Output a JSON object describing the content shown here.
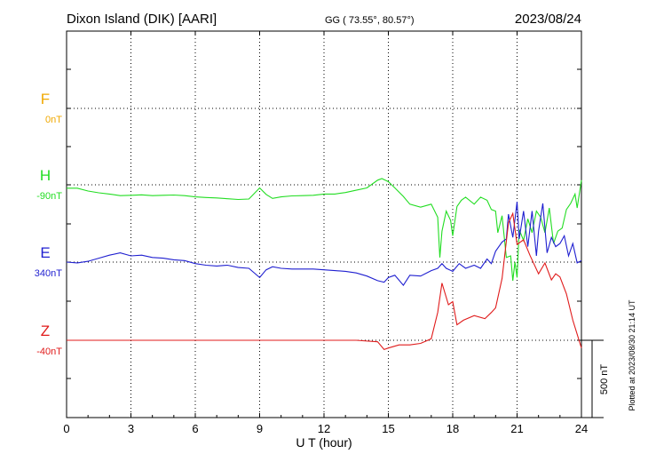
{
  "header": {
    "station": "Dixon Island (DIK)  [AARI]",
    "coords": "GG ( 73.55°,  80.57°)",
    "date": "2023/08/24"
  },
  "footer": {
    "plotted": "Plotted at 2023/08/30 21:14 UT"
  },
  "chart_data": {
    "type": "line",
    "xlabel": "U T (hour)",
    "xlim": [
      0,
      24
    ],
    "xticks": [
      0,
      3,
      6,
      9,
      12,
      15,
      18,
      21,
      24
    ],
    "scale_bar": {
      "value": 500,
      "label": "500 nT"
    },
    "series": [
      {
        "name": "F",
        "baseline": "0nT",
        "color": "#f0a800",
        "points": []
      },
      {
        "name": "H",
        "baseline": "-90nT",
        "color": "#22dd22",
        "points": [
          [
            0,
            -22
          ],
          [
            0.5,
            -22
          ],
          [
            1,
            -40
          ],
          [
            1.5,
            -52
          ],
          [
            2,
            -60
          ],
          [
            2.5,
            -70
          ],
          [
            3,
            -68
          ],
          [
            3.5,
            -65
          ],
          [
            4,
            -70
          ],
          [
            4.5,
            -68
          ],
          [
            5,
            -66
          ],
          [
            5.5,
            -70
          ],
          [
            6,
            -78
          ],
          [
            6.5,
            -82
          ],
          [
            7,
            -85
          ],
          [
            7.5,
            -90
          ],
          [
            8,
            -95
          ],
          [
            8.5,
            -92
          ],
          [
            9,
            -20
          ],
          [
            9.3,
            -62
          ],
          [
            9.6,
            -88
          ],
          [
            10,
            -78
          ],
          [
            10.5,
            -72
          ],
          [
            11,
            -70
          ],
          [
            11.5,
            -68
          ],
          [
            12,
            -60
          ],
          [
            12.5,
            -60
          ],
          [
            13,
            -50
          ],
          [
            13.5,
            -35
          ],
          [
            14,
            -20
          ],
          [
            14.5,
            30
          ],
          [
            14.7,
            40
          ],
          [
            15,
            20
          ],
          [
            15.3,
            -20
          ],
          [
            15.7,
            -75
          ],
          [
            16,
            -125
          ],
          [
            16.5,
            -145
          ],
          [
            17,
            -125
          ],
          [
            17.3,
            -210
          ],
          [
            17.4,
            -470
          ],
          [
            17.5,
            -300
          ],
          [
            17.7,
            -170
          ],
          [
            17.9,
            -230
          ],
          [
            18,
            -330
          ],
          [
            18.2,
            -140
          ],
          [
            18.4,
            -100
          ],
          [
            18.6,
            -80
          ],
          [
            19,
            -125
          ],
          [
            19.3,
            -80
          ],
          [
            19.6,
            -100
          ],
          [
            19.8,
            -160
          ],
          [
            20,
            -170
          ],
          [
            20.1,
            -310
          ],
          [
            20.3,
            -200
          ],
          [
            20.5,
            -470
          ],
          [
            20.7,
            -460
          ],
          [
            20.8,
            -620
          ],
          [
            20.9,
            -500
          ],
          [
            21,
            -600
          ],
          [
            21.1,
            -290
          ],
          [
            21.3,
            -360
          ],
          [
            21.5,
            -220
          ],
          [
            21.7,
            -310
          ],
          [
            21.9,
            -170
          ],
          [
            22.1,
            -210
          ],
          [
            22.3,
            -310
          ],
          [
            22.5,
            -150
          ],
          [
            22.7,
            -380
          ],
          [
            22.9,
            -300
          ],
          [
            23.1,
            -280
          ],
          [
            23.3,
            -160
          ],
          [
            23.5,
            -120
          ],
          [
            23.7,
            -60
          ],
          [
            23.8,
            -150
          ],
          [
            24,
            30
          ]
        ]
      },
      {
        "name": "E",
        "baseline": "340nT",
        "color": "#1f1fd0",
        "points": [
          [
            0,
            0
          ],
          [
            0.5,
            -5
          ],
          [
            1,
            5
          ],
          [
            1.5,
            25
          ],
          [
            2,
            45
          ],
          [
            2.5,
            60
          ],
          [
            3,
            40
          ],
          [
            3.5,
            45
          ],
          [
            4,
            30
          ],
          [
            4.5,
            25
          ],
          [
            5,
            15
          ],
          [
            5.5,
            10
          ],
          [
            6,
            -10
          ],
          [
            6.5,
            -20
          ],
          [
            7,
            -25
          ],
          [
            7.5,
            -20
          ],
          [
            8,
            -35
          ],
          [
            8.5,
            -40
          ],
          [
            9,
            -100
          ],
          [
            9.3,
            -50
          ],
          [
            9.6,
            -30
          ],
          [
            10,
            -40
          ],
          [
            10.5,
            -45
          ],
          [
            11,
            -45
          ],
          [
            11.5,
            -45
          ],
          [
            12,
            -50
          ],
          [
            12.5,
            -55
          ],
          [
            13,
            -60
          ],
          [
            13.5,
            -70
          ],
          [
            14,
            -90
          ],
          [
            14.5,
            -120
          ],
          [
            14.8,
            -130
          ],
          [
            15,
            -100
          ],
          [
            15.3,
            -85
          ],
          [
            15.7,
            -150
          ],
          [
            16,
            -85
          ],
          [
            16.5,
            -90
          ],
          [
            17,
            -55
          ],
          [
            17.3,
            -40
          ],
          [
            17.5,
            -10
          ],
          [
            17.7,
            -40
          ],
          [
            18,
            -60
          ],
          [
            18.3,
            -10
          ],
          [
            18.6,
            -40
          ],
          [
            19,
            -20
          ],
          [
            19.3,
            -40
          ],
          [
            19.6,
            20
          ],
          [
            19.8,
            -10
          ],
          [
            20,
            70
          ],
          [
            20.3,
            130
          ],
          [
            20.5,
            150
          ],
          [
            20.6,
            310
          ],
          [
            20.8,
            160
          ],
          [
            21,
            390
          ],
          [
            21.1,
            150
          ],
          [
            21.3,
            330
          ],
          [
            21.5,
            100
          ],
          [
            21.7,
            330
          ],
          [
            21.9,
            40
          ],
          [
            22,
            200
          ],
          [
            22.2,
            380
          ],
          [
            22.4,
            60
          ],
          [
            22.6,
            160
          ],
          [
            22.8,
            100
          ],
          [
            23,
            120
          ],
          [
            23.2,
            170
          ],
          [
            23.4,
            40
          ],
          [
            23.6,
            120
          ],
          [
            23.8,
            -5
          ],
          [
            24,
            10
          ]
        ]
      },
      {
        "name": "Z",
        "baseline": "-40nT",
        "color": "#e01b1b",
        "points": [
          [
            0,
            0
          ],
          [
            3,
            0
          ],
          [
            6,
            0
          ],
          [
            9,
            0
          ],
          [
            12,
            0
          ],
          [
            13.5,
            0
          ],
          [
            14.5,
            -10
          ],
          [
            14.8,
            -60
          ],
          [
            15,
            -50
          ],
          [
            15.5,
            -30
          ],
          [
            16,
            -30
          ],
          [
            16.5,
            -20
          ],
          [
            17,
            10
          ],
          [
            17.3,
            180
          ],
          [
            17.5,
            370
          ],
          [
            17.8,
            230
          ],
          [
            18,
            250
          ],
          [
            18.2,
            100
          ],
          [
            18.5,
            130
          ],
          [
            19,
            160
          ],
          [
            19.5,
            140
          ],
          [
            19.8,
            180
          ],
          [
            20,
            210
          ],
          [
            20.3,
            400
          ],
          [
            20.6,
            760
          ],
          [
            20.8,
            820
          ],
          [
            21,
            620
          ],
          [
            21.3,
            650
          ],
          [
            21.6,
            550
          ],
          [
            22,
            430
          ],
          [
            22.3,
            500
          ],
          [
            22.6,
            390
          ],
          [
            22.8,
            430
          ],
          [
            23,
            410
          ],
          [
            23.3,
            300
          ],
          [
            23.6,
            130
          ],
          [
            24,
            -50
          ]
        ]
      }
    ]
  }
}
